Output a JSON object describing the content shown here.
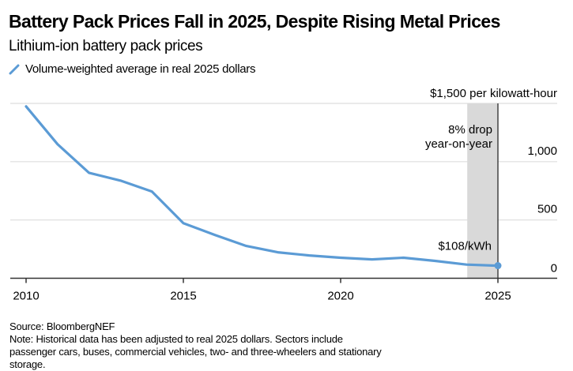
{
  "chart_data": {
    "type": "line",
    "title": "Battery Pack Prices Fall in 2025, Despite Rising Metal Prices",
    "subtitle": "Lithium-ion battery pack prices",
    "legend": [
      {
        "label": "Volume-weighted average in real 2025 dollars",
        "color": "#5b9bd5"
      }
    ],
    "x": [
      2010,
      2011,
      2012,
      2013,
      2014,
      2015,
      2016,
      2017,
      2018,
      2019,
      2020,
      2021,
      2022,
      2023,
      2024,
      2025
    ],
    "series": [
      {
        "name": "Volume-weighted average in real 2025 dollars",
        "values": [
          1474,
          1150,
          905,
          838,
          744,
          473,
          372,
          277,
          223,
          196,
          176,
          162,
          176,
          149,
          117,
          108
        ],
        "color": "#5b9bd5"
      }
    ],
    "xlabel": "",
    "ylabel": "",
    "xlim": [
      2010,
      2026.9
    ],
    "ylim": [
      0,
      1500
    ],
    "x_ticks": [
      2010,
      2015,
      2020,
      2025
    ],
    "x_tick_labels": [
      "2010",
      "2015",
      "2020",
      "2025"
    ],
    "y_ticks": [
      0,
      500,
      1000,
      1500
    ],
    "y_tick_labels": [
      "0",
      "500",
      "1,000",
      "$1,500 per kilowatt-hour"
    ],
    "y_axis_side": "right",
    "grid": true,
    "shaded_region": {
      "from": 2024,
      "to": 2025,
      "color": "#d9d9d9"
    },
    "annotations": [
      {
        "text_lines": [
          "8% drop",
          "year-on-year"
        ],
        "anchor": "shaded-region"
      },
      {
        "text": "$108/kWh",
        "x": 2025,
        "y": 108
      }
    ],
    "source": "Source: BloombergNEF",
    "note": "Note: Historical data has been adjusted to real 2025 dollars. Sectors include passenger cars, buses, commercial vehicles, two- and three-wheelers and stationary storage."
  },
  "colors": {
    "line": "#5b9bd5",
    "grid": "#dddddd",
    "axis": "#333333",
    "shade": "#d9d9d9",
    "marker_line": "#444444"
  }
}
